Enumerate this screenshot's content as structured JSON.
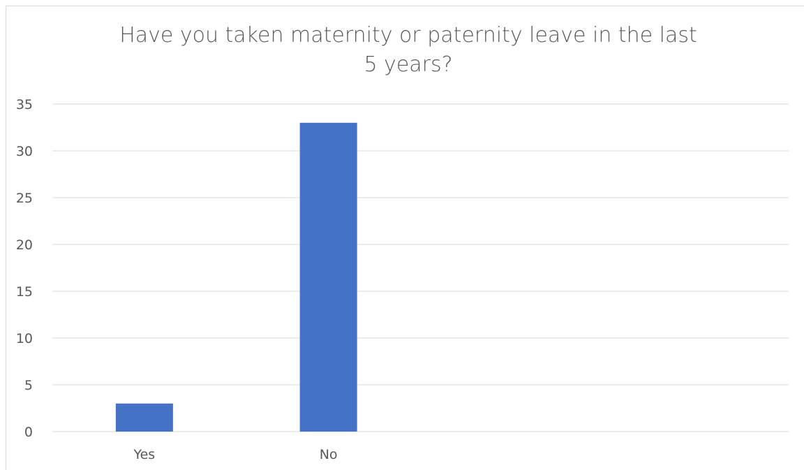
{
  "chart_data": {
    "type": "bar",
    "title_line1": "Have you taken maternity or paternity leave in the last",
    "title_line2": "5 years?",
    "categories": [
      "Yes",
      "No",
      "",
      ""
    ],
    "values": [
      3,
      33,
      null,
      null
    ],
    "ylim": [
      0,
      35
    ],
    "yticks": [
      0,
      5,
      10,
      15,
      20,
      25,
      30,
      35
    ],
    "grid": true,
    "legend": "none",
    "colors": {
      "bar": "#4472c4",
      "grid": "#d9d9d9",
      "text": "#595959"
    }
  }
}
